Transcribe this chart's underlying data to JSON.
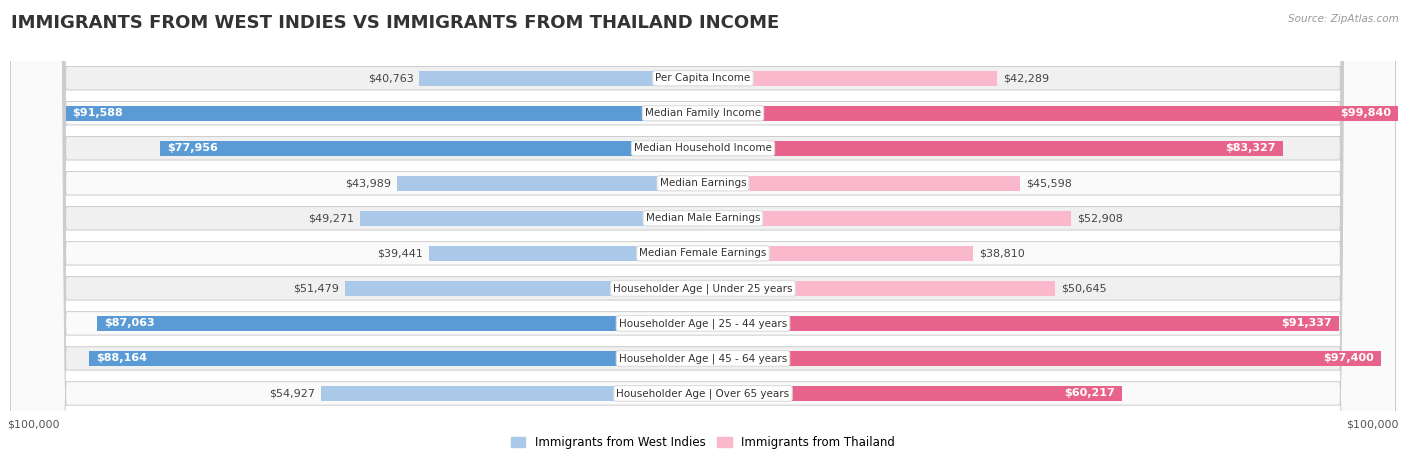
{
  "title": "IMMIGRANTS FROM WEST INDIES VS IMMIGRANTS FROM THAILAND INCOME",
  "source": "Source: ZipAtlas.com",
  "categories": [
    "Per Capita Income",
    "Median Family Income",
    "Median Household Income",
    "Median Earnings",
    "Median Male Earnings",
    "Median Female Earnings",
    "Householder Age | Under 25 years",
    "Householder Age | 25 - 44 years",
    "Householder Age | 45 - 64 years",
    "Householder Age | Over 65 years"
  ],
  "west_indies_values": [
    40763,
    91588,
    77956,
    43989,
    49271,
    39441,
    51479,
    87063,
    88164,
    54927
  ],
  "thailand_values": [
    42289,
    99840,
    83327,
    45598,
    52908,
    38810,
    50645,
    91337,
    97400,
    60217
  ],
  "west_indies_labels": [
    "$40,763",
    "$91,588",
    "$77,956",
    "$43,989",
    "$49,271",
    "$39,441",
    "$51,479",
    "$87,063",
    "$88,164",
    "$54,927"
  ],
  "thailand_labels": [
    "$42,289",
    "$99,840",
    "$83,327",
    "$45,598",
    "$52,908",
    "$38,810",
    "$50,645",
    "$91,337",
    "$97,400",
    "$60,217"
  ],
  "west_indies_light_color": "#aac8e8",
  "west_indies_dark_color": "#5b9bd5",
  "thailand_light_color": "#f9b8cb",
  "thailand_dark_color": "#e8638c",
  "max_value": 100000,
  "inside_threshold": 0.55,
  "title_fontsize": 13,
  "label_fontsize": 8,
  "cat_fontsize": 7.5,
  "legend_label_wi": "Immigrants from West Indies",
  "legend_label_th": "Immigrants from Thailand",
  "row_bg_even": "#f0f0f0",
  "row_bg_odd": "#fafafa",
  "row_border_color": "#cccccc",
  "figure_bg": "#ffffff"
}
